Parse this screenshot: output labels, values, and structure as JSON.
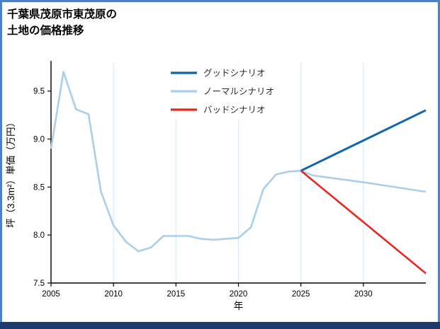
{
  "frame": {
    "side_border_color": "#4c82c3",
    "bottom_bar_color": "#1c3a6e",
    "background_color": "#ffffff"
  },
  "title": {
    "line1": "千葉県茂原市東茂原の",
    "line2": "土地の価格推移"
  },
  "chart_data": {
    "type": "line",
    "title": "千葉県茂原市東茂原の土地の価格推移",
    "xlabel": "年",
    "ylabel": "坪（3.3m²）単価（万円）",
    "xlim": [
      2005,
      2035
    ],
    "ylim": [
      7.5,
      9.8
    ],
    "xticks": [
      2005,
      2010,
      2015,
      2020,
      2025,
      2030
    ],
    "yticks": [
      7.5,
      8.0,
      8.5,
      9.0,
      9.5
    ],
    "grid": "vertical",
    "grid_color": "#d5e7f7",
    "legend_position": "upper center-left",
    "draw_order": [
      1,
      0,
      2
    ],
    "series": [
      {
        "name": "グッドシナリオ",
        "color": "#1065ab",
        "width": 3,
        "points": [
          [
            2025,
            8.67
          ],
          [
            2035,
            9.3
          ]
        ]
      },
      {
        "name": "ノーマルシナリオ",
        "color": "#a9cfec",
        "width": 2.6,
        "points": [
          [
            2005,
            8.9
          ],
          [
            2006,
            9.7
          ],
          [
            2007,
            9.31
          ],
          [
            2008,
            9.26
          ],
          [
            2009,
            8.45
          ],
          [
            2010,
            8.1
          ],
          [
            2011,
            7.93
          ],
          [
            2012,
            7.83
          ],
          [
            2013,
            7.87
          ],
          [
            2014,
            7.99
          ],
          [
            2015,
            7.99
          ],
          [
            2016,
            7.99
          ],
          [
            2017,
            7.96
          ],
          [
            2018,
            7.95
          ],
          [
            2019,
            7.96
          ],
          [
            2020,
            7.97
          ],
          [
            2021,
            8.08
          ],
          [
            2022,
            8.48
          ],
          [
            2023,
            8.63
          ],
          [
            2024,
            8.66
          ],
          [
            2025,
            8.67
          ],
          [
            2026,
            8.62
          ],
          [
            2030,
            8.55
          ],
          [
            2035,
            8.45
          ]
        ]
      },
      {
        "name": "バッドシナリオ",
        "color": "#e8271f",
        "width": 2.6,
        "points": [
          [
            2025,
            8.67
          ],
          [
            2035,
            7.6
          ]
        ]
      }
    ]
  }
}
